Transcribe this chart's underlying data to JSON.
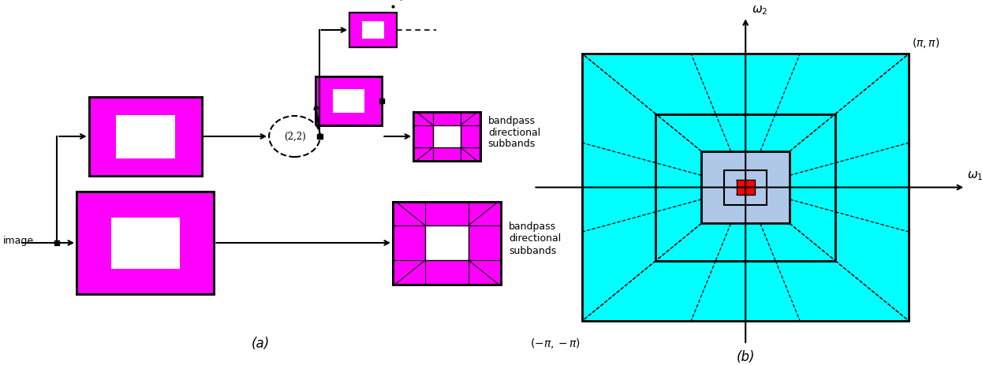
{
  "magenta": "#FF00FF",
  "cyan": "#00FFFF",
  "light_blue": "#B0C8E8",
  "red": "#FF0000",
  "black": "#000000",
  "white": "#FFFFFF",
  "label_a": "(a)",
  "label_b": "(b)",
  "bandpass_label": "bandpass\ndirectional\nsubbands",
  "image_label": "image"
}
